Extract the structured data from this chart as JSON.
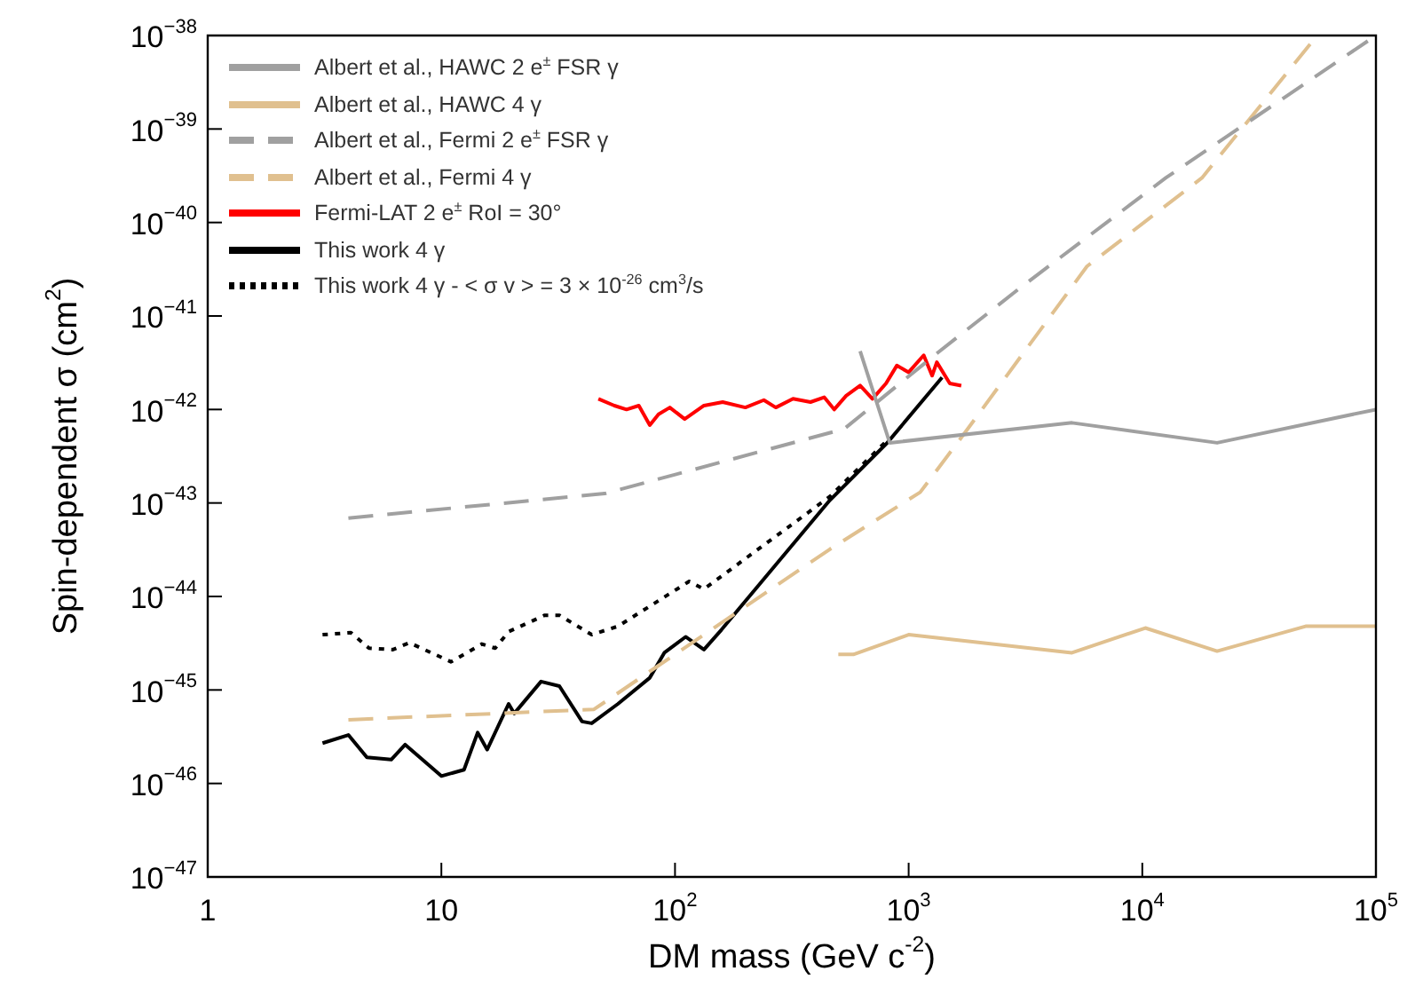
{
  "chart_data": {
    "type": "line",
    "xlabel": "DM mass (GeV c$^{-2}$)",
    "ylabel": "Spin-dependent σ (cm$^{2}$)",
    "log": "xy",
    "grid": false,
    "legend": "top left",
    "marker": "none",
    "xlim": [
      1,
      100000
    ],
    "xticks": [
      1,
      10,
      {
        "value": 100,
        "label": "10$^{2}$"
      },
      {
        "value": 1000,
        "label": "10$^{3}$"
      },
      {
        "value": 10000,
        "label": "10$^{4}$"
      },
      {
        "value": 100000,
        "label": "10$^{5}$"
      }
    ],
    "ylim": [
      1e-47,
      1e-38
    ],
    "yticks": [
      {
        "value": 1e-47,
        "label": "10$^{−47}$"
      },
      {
        "value": 1e-46,
        "label": "10$^{−46}$"
      },
      {
        "value": 1e-45,
        "label": "10$^{−45}$"
      },
      {
        "value": 1e-44,
        "label": "10$^{−44}$"
      },
      {
        "value": 1e-43,
        "label": "10$^{−43}$"
      },
      {
        "value": 1e-42,
        "label": "10$^{−42}$"
      },
      {
        "value": 1e-41,
        "label": "10$^{−41}$"
      },
      {
        "value": 1e-40,
        "label": "10$^{−40}$"
      },
      {
        "value": 1e-39,
        "label": "10$^{−39}$"
      },
      {
        "value": 1e-38,
        "label": "10$^{−38}$"
      }
    ],
    "series": [
      {
        "name": "Albert et al., HAWC 2 e$^{±}$ FSR γ",
        "color": "#a0a0a0",
        "line_style": "solid",
        "x": [
          620,
          830,
          5000,
          20900,
          100000
        ],
        "values": [
          4.2e-42,
          4.4e-43,
          7.2e-43,
          4.4e-43,
          1e-42
        ]
      },
      {
        "name": "Albert et al., HAWC 4 γ",
        "color": "#e0c08f",
        "line_style": "solid",
        "x": [
          500,
          580,
          1000,
          5000,
          10300,
          20900,
          50000,
          100000
        ],
        "values": [
          2.4e-45,
          2.4e-45,
          3.9e-45,
          2.5e-45,
          4.6e-45,
          2.6e-45,
          4.8e-45,
          4.8e-45
        ]
      },
      {
        "name": "Albert et al., Fermi 2 e$^{±}$ FSR γ",
        "color": "#a0a0a0",
        "line_style": "dashed",
        "x": [
          4,
          50,
          530,
          1290,
          3000,
          12600,
          100000
        ],
        "values": [
          6.9e-44,
          1.26e-43,
          6.2e-43,
          3.8e-42,
          2e-41,
          3e-40,
          1e-38
        ]
      },
      {
        "name": "Albert et al., Fermi 4 γ",
        "color": "#e0c08f",
        "line_style": "dashed",
        "x": [
          4,
          45,
          460,
          1120,
          1680,
          5800,
          18000,
          56000
        ],
        "values": [
          4.8e-46,
          6.2e-46,
          3.2e-44,
          1.3e-43,
          5e-43,
          3.4e-41,
          3e-40,
          1e-38
        ]
      },
      {
        "name": "Fermi-LAT 2 e$^{±}$ RoI = 30°",
        "color": "#ff0000",
        "line_style": "solid",
        "x": [
          47,
          55,
          62,
          70,
          78,
          85,
          95,
          110,
          133,
          160,
          200,
          240,
          270,
          320,
          380,
          435,
          480,
          540,
          620,
          700,
          800,
          890,
          1000,
          1160,
          1260,
          1320,
          1500,
          1680
        ],
        "values": [
          1.3e-42,
          1.1e-42,
          1e-42,
          1.1e-42,
          6.8e-43,
          8.9e-43,
          1.05e-42,
          7.9e-43,
          1.1e-42,
          1.2e-42,
          1.05e-42,
          1.26e-42,
          1.05e-42,
          1.3e-42,
          1.2e-42,
          1.35e-42,
          1e-42,
          1.4e-42,
          1.8e-42,
          1.3e-42,
          1.9e-42,
          2.95e-42,
          2.5e-42,
          3.8e-42,
          2.3e-42,
          3.2e-42,
          1.9e-42,
          1.8e-42
        ]
      },
      {
        "name": "This work 4 γ",
        "color": "#000000",
        "line_style": "solid",
        "x": [
          3.1,
          4.0,
          4.8,
          6.1,
          7.0,
          10,
          12.5,
          14.3,
          15.7,
          19.4,
          20.5,
          26.7,
          32,
          40,
          44,
          57,
          78,
          90,
          111,
          133,
          158,
          460,
          810,
          1390
        ],
        "values": [
          2.7e-46,
          3.3e-46,
          1.9e-46,
          1.8e-46,
          2.6e-46,
          1.2e-46,
          1.4e-46,
          3.5e-46,
          2.3e-46,
          7.1e-46,
          5.6e-46,
          1.23e-45,
          1.1e-45,
          4.6e-46,
          4.4e-46,
          7.1e-46,
          1.35e-45,
          2.5e-45,
          3.7e-45,
          2.7e-45,
          4.4e-45,
          1.07e-43,
          4.4e-43,
          2.2e-42
        ]
      },
      {
        "name": "This work 4 γ - < σ v > = 3 × 10$^{-26}$ cm$^{3}$/s",
        "color": "#000000",
        "line_style": "dotted",
        "x": [
          3.1,
          4.1,
          4.9,
          6.2,
          7.3,
          11,
          14.9,
          17,
          19.4,
          27.7,
          32,
          44,
          57,
          115,
          133,
          460,
          790
        ],
        "values": [
          3.9e-45,
          4.1e-45,
          2.8e-45,
          2.7e-45,
          3.2e-45,
          2e-45,
          3.1e-45,
          2.8e-45,
          4.2e-45,
          6.3e-45,
          6.3e-45,
          3.9e-45,
          4.8e-45,
          1.45e-44,
          1.2e-44,
          1.17e-43,
          4.4e-43
        ]
      }
    ]
  }
}
